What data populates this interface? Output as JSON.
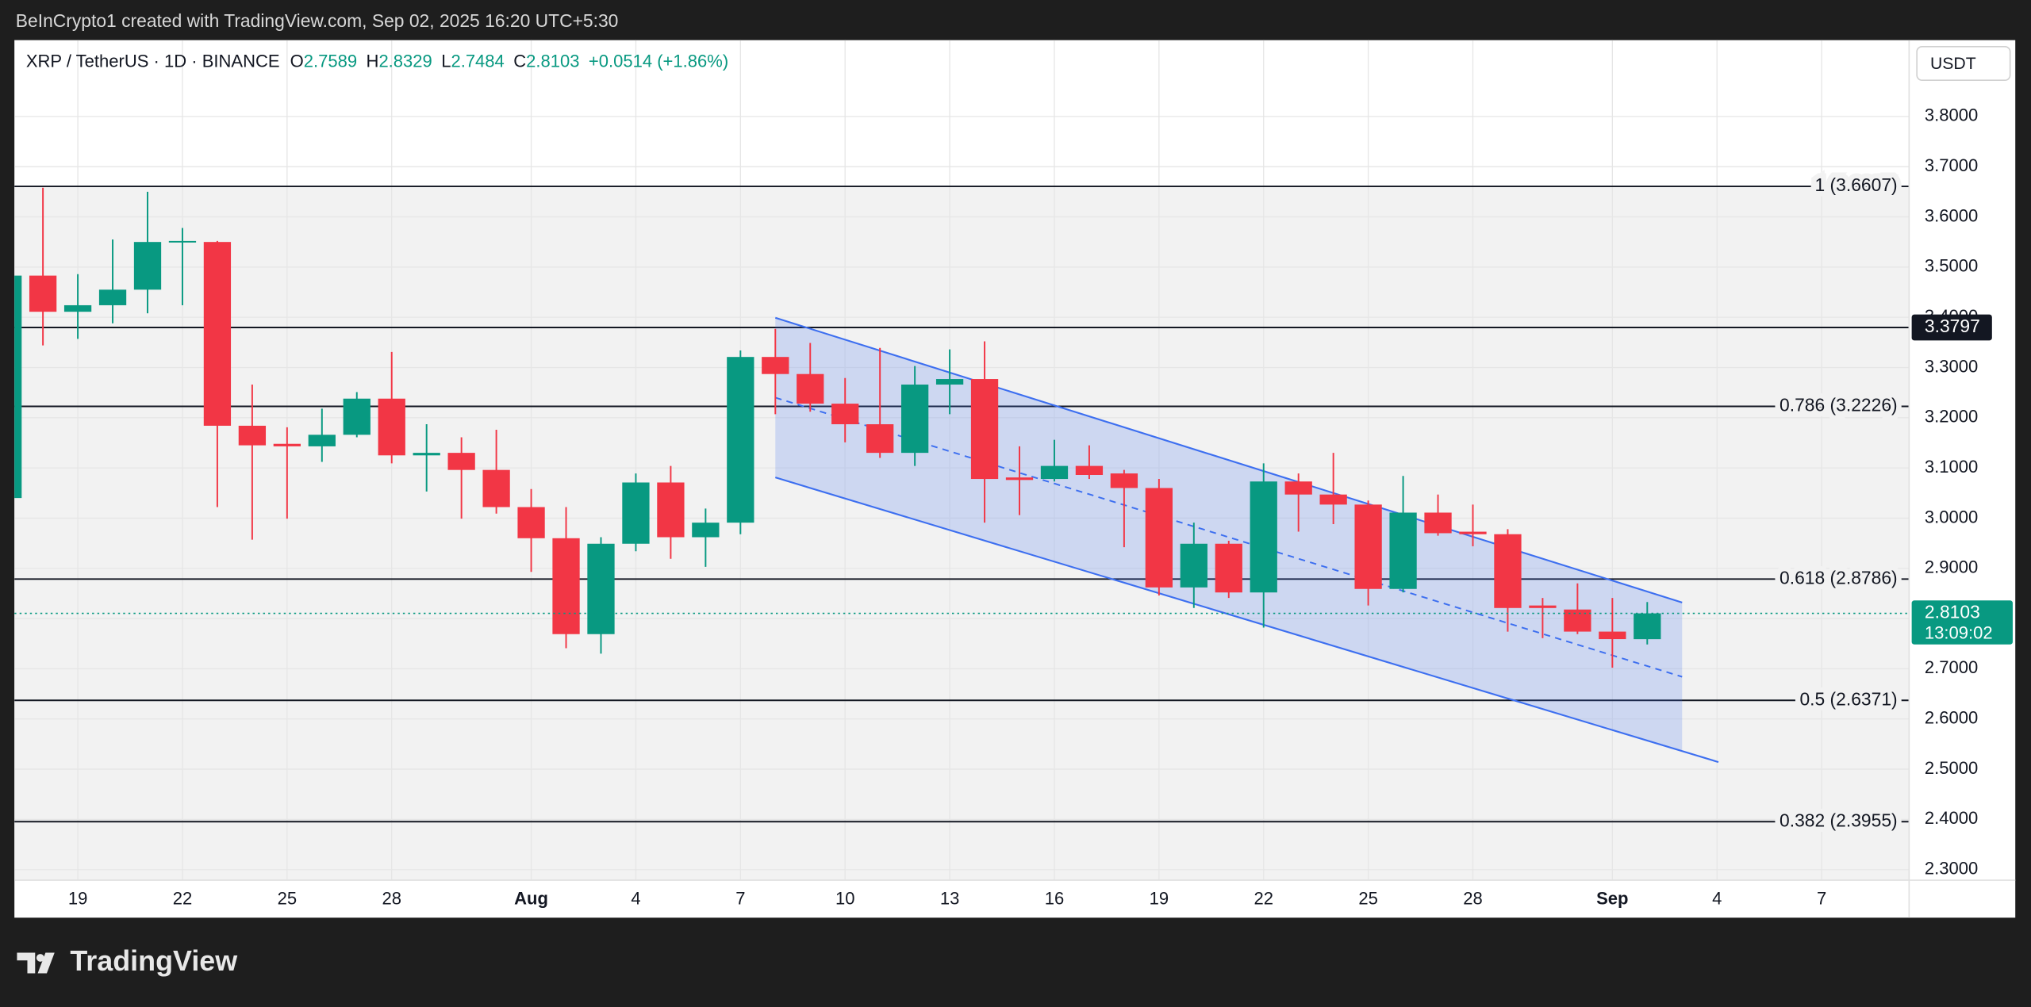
{
  "chart_data": {
    "type": "candlestick",
    "header": "BeInCrypto1 created with TradingView.com, Sep 02, 2025 16:20 UTC+5:30",
    "symbol": "XRP / TetherUS · 1D · BINANCE",
    "ohlc_letters": [
      "O",
      "H",
      "L",
      "C"
    ],
    "change_label": "+0.0514 (+1.86%)",
    "currency": "USDT",
    "countdown": "13:09:02",
    "brand": "TradingView",
    "up_color": "#089981",
    "down_color": "#f23645",
    "channel_color": "#3d6ff0",
    "grid": true,
    "categories": [
      null,
      null,
      "19",
      null,
      null,
      "22",
      null,
      null,
      "25",
      null,
      null,
      "28",
      null,
      null,
      null,
      "Aug",
      null,
      null,
      "4",
      null,
      null,
      "7",
      null,
      null,
      "10",
      null,
      null,
      "13",
      null,
      null,
      "16",
      null,
      null,
      "19",
      null,
      null,
      "22",
      null,
      null,
      "25",
      null,
      null,
      "28",
      null,
      null,
      null,
      "Sep",
      null,
      null,
      "4",
      null,
      null,
      "7",
      null,
      null
    ],
    "open": [
      3.04,
      3.483,
      3.411,
      3.424,
      3.455,
      3.55,
      3.55,
      3.184,
      3.148,
      3.143,
      3.166,
      3.238,
      3.125,
      3.13,
      3.096,
      3.022,
      2.96,
      2.769,
      2.949,
      3.071,
      2.962,
      2.991,
      3.321,
      3.287,
      3.228,
      3.187,
      3.13,
      3.266,
      3.277,
      3.081,
      3.078,
      3.104,
      3.089,
      3.06,
      2.862,
      2.949,
      2.852,
      3.073,
      3.047,
      3.027,
      2.859,
      3.011,
      2.973,
      2.968,
      2.826,
      2.818,
      2.774,
      2.7589,
      null,
      null,
      null,
      null,
      null,
      null,
      null
    ],
    "high": [
      3.49,
      3.658,
      3.486,
      3.555,
      3.65,
      3.578,
      3.552,
      3.266,
      3.181,
      3.218,
      3.251,
      3.331,
      3.187,
      3.161,
      3.176,
      3.058,
      3.022,
      2.962,
      3.089,
      3.104,
      3.019,
      3.334,
      3.377,
      3.349,
      3.279,
      3.339,
      3.303,
      3.336,
      3.352,
      3.143,
      3.156,
      3.145,
      3.096,
      3.078,
      2.991,
      2.955,
      3.109,
      3.089,
      3.13,
      3.035,
      3.084,
      3.047,
      3.027,
      2.978,
      2.841,
      2.87,
      2.841,
      2.8329,
      null,
      null,
      null,
      null,
      null,
      null,
      null
    ],
    "low": [
      3.03,
      3.344,
      3.357,
      3.388,
      3.408,
      3.424,
      3.022,
      2.957,
      2.999,
      3.112,
      3.161,
      3.109,
      3.053,
      2.999,
      3.009,
      2.893,
      2.741,
      2.73,
      2.934,
      2.919,
      2.903,
      2.968,
      3.207,
      3.212,
      3.151,
      3.12,
      3.104,
      3.207,
      2.991,
      3.006,
      3.073,
      3.078,
      2.942,
      2.846,
      2.821,
      2.841,
      2.782,
      2.973,
      2.988,
      2.826,
      2.852,
      2.965,
      2.944,
      2.774,
      2.761,
      2.769,
      2.702,
      2.7484,
      null,
      null,
      null,
      null,
      null,
      null,
      null
    ],
    "close": [
      3.483,
      3.411,
      3.424,
      3.455,
      3.55,
      3.552,
      3.184,
      3.145,
      3.143,
      3.166,
      3.238,
      3.125,
      3.13,
      3.096,
      3.022,
      2.96,
      2.769,
      2.949,
      3.071,
      2.962,
      2.991,
      3.321,
      3.287,
      3.228,
      3.187,
      3.13,
      3.266,
      3.277,
      3.078,
      3.076,
      3.104,
      3.086,
      3.06,
      2.862,
      2.949,
      2.852,
      3.073,
      3.047,
      3.027,
      2.859,
      3.011,
      2.97,
      2.968,
      2.821,
      2.821,
      2.774,
      2.759,
      2.8103,
      null,
      null,
      null,
      null,
      null,
      null,
      null
    ],
    "ylim": [
      2.279,
      3.952
    ],
    "yticks": [
      {
        "value": 2.3,
        "label": "2.3000"
      },
      {
        "value": 2.4,
        "label": "2.4000"
      },
      {
        "value": 2.5,
        "label": "2.5000"
      },
      {
        "value": 2.6,
        "label": "2.6000"
      },
      {
        "value": 2.7,
        "label": "2.7000"
      },
      {
        "value": 2.8,
        "label": "2.8000"
      },
      {
        "value": 2.9,
        "label": "2.9000"
      },
      {
        "value": 3.0,
        "label": "3.0000"
      },
      {
        "value": 3.1,
        "label": "3.1000"
      },
      {
        "value": 3.2,
        "label": "3.2000"
      },
      {
        "value": 3.3,
        "label": "3.3000"
      },
      {
        "value": 3.4,
        "label": "3.4000"
      },
      {
        "value": 3.5,
        "label": "3.5000"
      },
      {
        "value": 3.6,
        "label": "3.6000"
      },
      {
        "value": 3.7,
        "label": "3.7000"
      },
      {
        "value": 3.8,
        "label": "3.8000"
      }
    ],
    "fib_levels": [
      {
        "value": 3.6607,
        "label": "1 (3.6607)"
      },
      {
        "value": 3.2226,
        "label": "0.786 (3.2226)"
      },
      {
        "value": 2.8786,
        "label": "0.618 (2.8786)"
      },
      {
        "value": 2.6371,
        "label": "0.5 (2.6371)"
      },
      {
        "value": 2.3955,
        "label": "0.382 (2.3955)"
      }
    ],
    "hline": 3.3797,
    "channel": {
      "start": 22,
      "end": 48,
      "upper": [
        3.399,
        2.832
      ],
      "lower": [
        3.081,
        2.536
      ]
    }
  }
}
